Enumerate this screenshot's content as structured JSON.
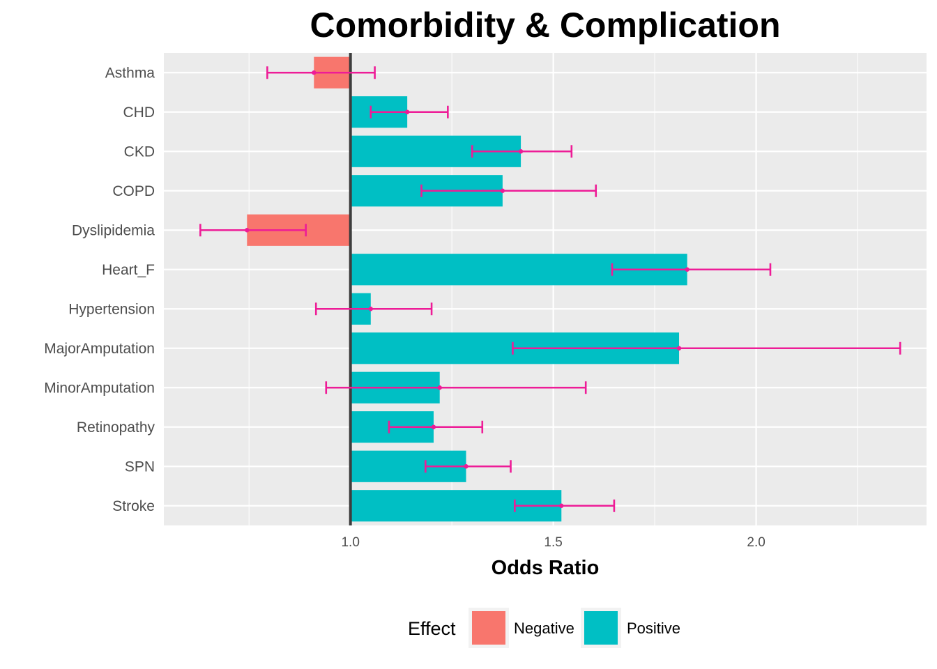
{
  "chart_data": {
    "type": "bar",
    "orientation": "horizontal",
    "title": "Comorbidity & Complication",
    "xlabel": "Odds Ratio",
    "ylabel": "",
    "xlim": [
      0.54,
      2.42
    ],
    "baseline": 1.0,
    "xticks": [
      1.0,
      1.5,
      2.0
    ],
    "xtick_labels": [
      "1.0",
      "1.5",
      "2.0"
    ],
    "grid": true,
    "categories": [
      "Asthma",
      "CHD",
      "CKD",
      "COPD",
      "Dyslipidemia",
      "Heart_F",
      "Hypertension",
      "MajorAmputation",
      "MinorAmputation",
      "Retinopathy",
      "SPN",
      "Stroke"
    ],
    "values": [
      0.91,
      1.14,
      1.42,
      1.375,
      0.745,
      1.83,
      1.05,
      1.81,
      1.22,
      1.205,
      1.285,
      1.52
    ],
    "ci_lower": [
      0.795,
      1.05,
      1.3,
      1.175,
      0.63,
      1.645,
      0.915,
      1.4,
      0.94,
      1.095,
      1.185,
      1.405
    ],
    "ci_upper": [
      1.06,
      1.24,
      1.545,
      1.605,
      0.89,
      2.035,
      1.2,
      2.355,
      1.58,
      1.325,
      1.395,
      1.65
    ],
    "effect": [
      "Negative",
      "Positive",
      "Positive",
      "Positive",
      "Negative",
      "Positive",
      "Positive",
      "Positive",
      "Positive",
      "Positive",
      "Positive",
      "Positive"
    ],
    "legend": {
      "title": "Effect",
      "position": "bottom",
      "items": [
        {
          "label": "Negative",
          "color": "#F8766D"
        },
        {
          "label": "Positive",
          "color": "#00BFC4"
        }
      ]
    },
    "colors": {
      "panel": "#EBEBEB",
      "grid": "#FFFFFF",
      "errorbar": "#EE1C97",
      "baseline": "#3D3D3D"
    }
  }
}
